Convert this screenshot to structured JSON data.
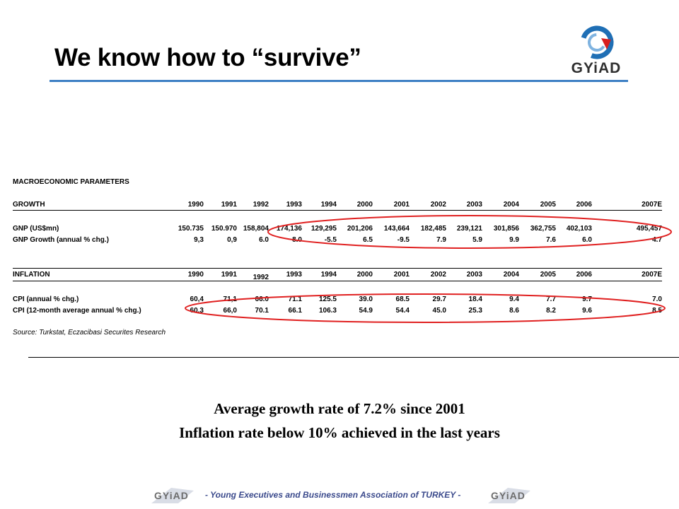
{
  "title": "We know how to “survive”",
  "logo": {
    "text": "GYiAD",
    "icon": "gyiad-ring-logo-icon",
    "colors": {
      "blue": "#1f6fb5",
      "red": "#d81e1e"
    }
  },
  "table": {
    "heading": "MACROECONOMIC PARAMETERS",
    "growth": {
      "label": "GROWTH",
      "years": [
        "1990",
        "1991",
        "1992",
        "1993",
        "1994",
        "2000",
        "2001",
        "2002",
        "2003",
        "2004",
        "2005",
        "2006",
        "2007E"
      ],
      "rows": [
        {
          "label": "GNP (US$mn)",
          "values": [
            "150.735",
            "150.970",
            "158,804",
            "174,136",
            "129,295",
            "201,206",
            "143,664",
            "182,485",
            "239,121",
            "301,856",
            "362,755",
            "402,103",
            "495,457"
          ]
        },
        {
          "label": "GNP Growth (annual % chg.)",
          "values": [
            "9,3",
            "0,9",
            "6.0",
            "8.0",
            "-5.5",
            "6.5",
            "-9.5",
            "7.9",
            "5.9",
            "9.9",
            "7.6",
            "6.0",
            "4.7"
          ]
        }
      ]
    },
    "inflation": {
      "label": "INFLATION",
      "years": [
        "1990",
        "1991",
        "1992",
        "1993",
        "1994",
        "2000",
        "2001",
        "2002",
        "2003",
        "2004",
        "2005",
        "2006",
        "2007E"
      ],
      "rows": [
        {
          "label": "CPI (annual % chg.)",
          "values": [
            "60,4",
            "71,1",
            "66.0",
            "71.1",
            "125.5",
            "39.0",
            "68.5",
            "29.7",
            "18.4",
            "9.4",
            "7.7",
            "9.7",
            "7.0"
          ]
        },
        {
          "label": "CPI (12-month average annual % chg.)",
          "values": [
            "60,3",
            "66,0",
            "70.1",
            "66.1",
            "106.3",
            "54.9",
            "54.4",
            "45.0",
            "25.3",
            "8.6",
            "8.2",
            "9.6",
            "8.5"
          ]
        }
      ]
    },
    "source": "Source: Turkstat, Eczacibasi Securites Research"
  },
  "highlight_color": "#e02020",
  "messages": {
    "line1": "Average growth rate of 7.2% since 2001",
    "line2": "Inflation rate below 10% achieved in the last years"
  },
  "footer": {
    "text": "- Young Executives and Businessmen Association of TURKEY -",
    "logo_text": "GYiAD"
  }
}
